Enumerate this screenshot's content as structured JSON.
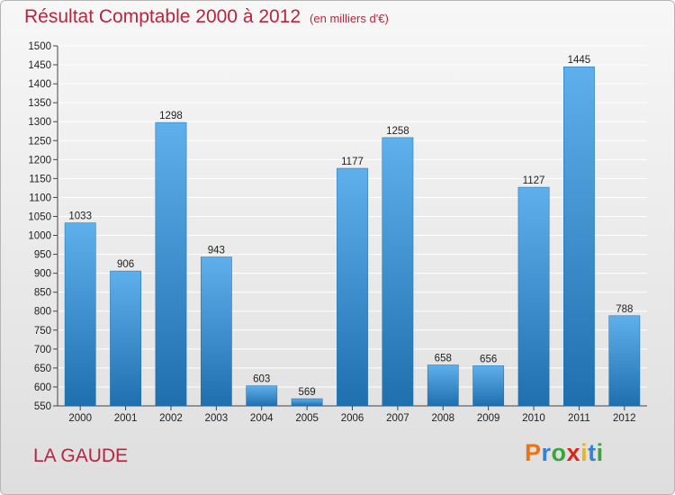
{
  "header": {
    "title": "Résultat Comptable 2000 à 2012",
    "subtitle": "(en milliers d'€)"
  },
  "footer": {
    "location": "LA GAUDE",
    "logo_text": "Proxiti",
    "logo_colors": [
      "#e8731a",
      "#3a7fd0",
      "#3aa53a",
      "#d8261e",
      "#e8b51a",
      "#3a7fd0",
      "#3aa53a"
    ]
  },
  "colors": {
    "bar_light": "#5eb0ec",
    "bar_dark": "#1f6fae",
    "title": "#b5263f",
    "grid": "#ffffff"
  },
  "chart_data": {
    "type": "bar",
    "title": "Résultat Comptable 2000 à 2012",
    "subtitle": "(en milliers d'€)",
    "xlabel": "",
    "ylabel": "",
    "categories": [
      "2000",
      "2001",
      "2002",
      "2003",
      "2004",
      "2005",
      "2006",
      "2007",
      "2008",
      "2009",
      "2010",
      "2011",
      "2012"
    ],
    "values": [
      1033,
      906,
      1298,
      943,
      603,
      569,
      1177,
      1258,
      658,
      656,
      1127,
      1445,
      788
    ],
    "ylim": [
      550,
      1500
    ],
    "yticks": [
      550,
      600,
      650,
      700,
      750,
      800,
      850,
      900,
      950,
      1000,
      1050,
      1100,
      1150,
      1200,
      1250,
      1300,
      1350,
      1400,
      1450,
      1500
    ],
    "grid": true,
    "legend": "none"
  }
}
